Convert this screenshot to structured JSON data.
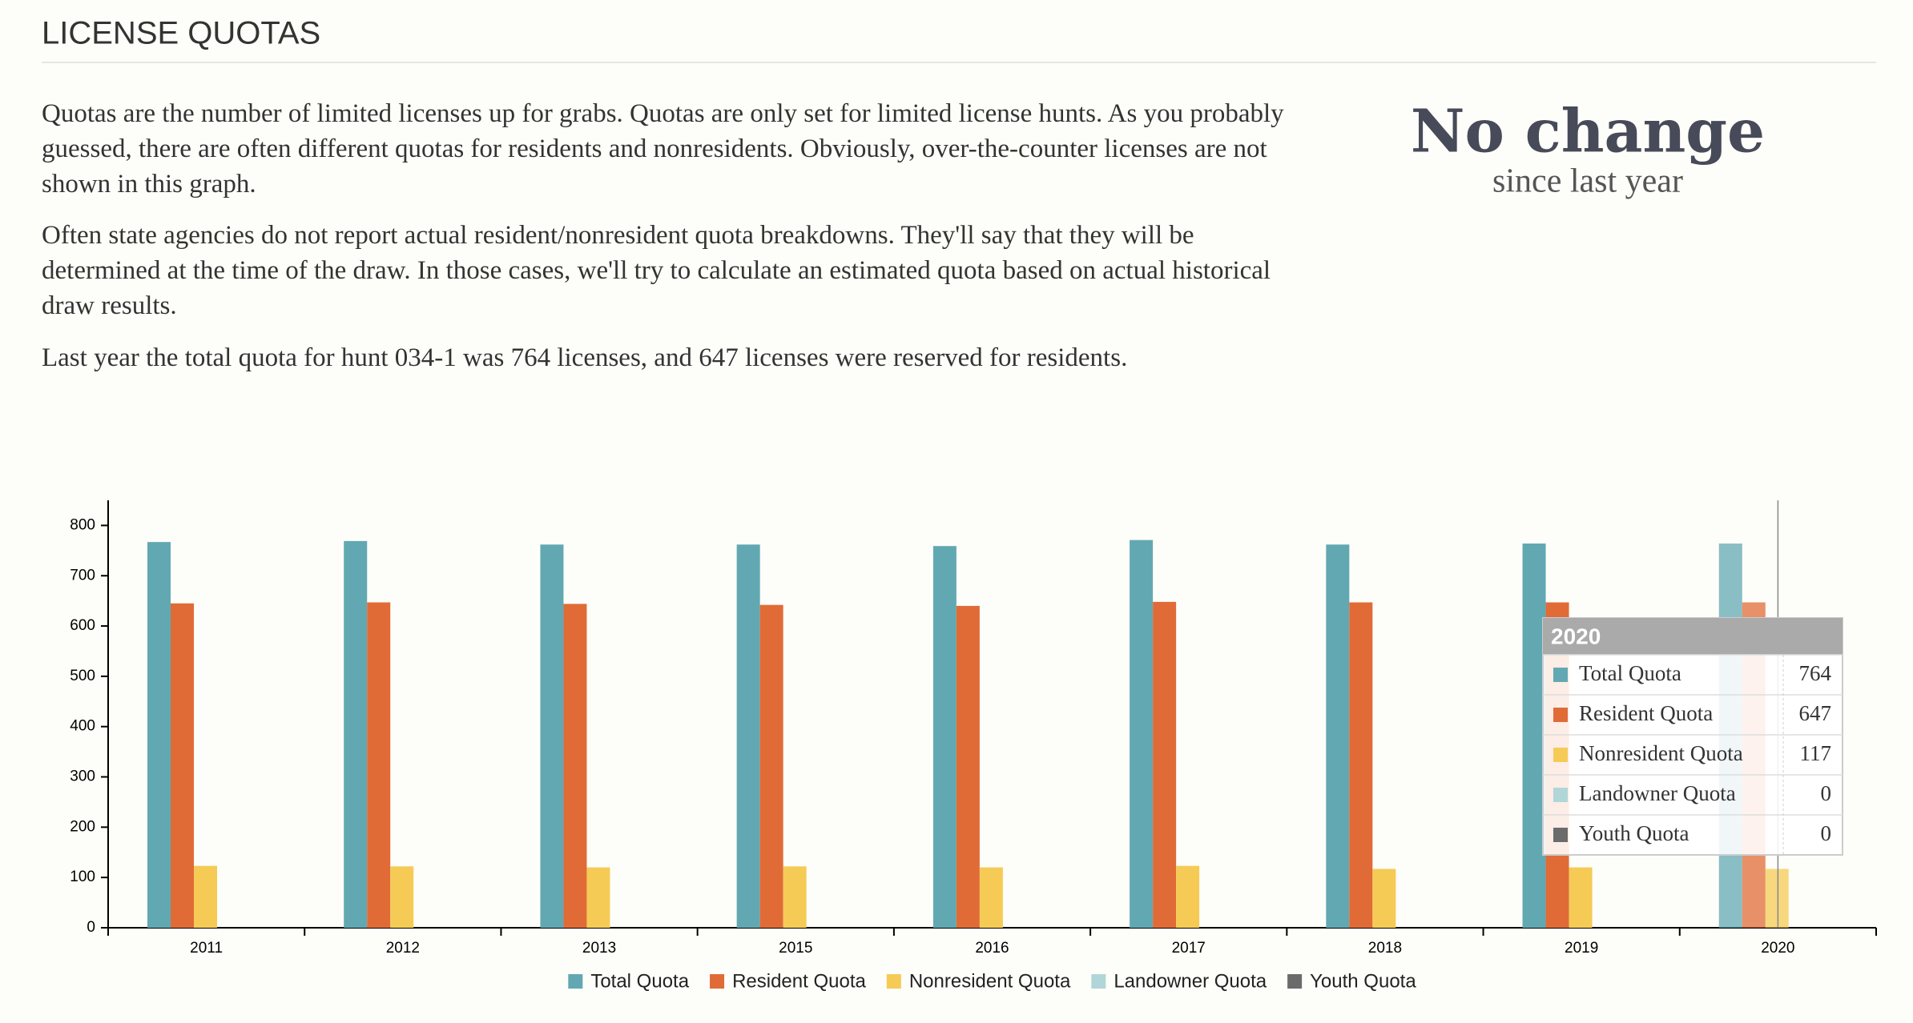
{
  "header": {
    "title": "LICENSE QUOTAS"
  },
  "paragraphs": [
    "Quotas are the number of limited licenses up for grabs. Quotas are only set for limited license hunts. As you probably guessed, there are often different quotas for residents and nonresidents. Obviously, over-the-counter licenses are not shown in this graph.",
    "Often state agencies do not report actual resident/nonresident quota breakdowns. They'll say that they will be determined at the time of the draw. In those cases, we'll try to calculate an estimated quota based on actual historical draw results.",
    "Last year the total quota for hunt 034-1 was 764 licenses, and 647 licenses were reserved for residents."
  ],
  "summary": {
    "headline": "No change",
    "subtitle": "since last year"
  },
  "chart_data": {
    "type": "bar",
    "categories": [
      "2011",
      "2012",
      "2013",
      "2015",
      "2016",
      "2017",
      "2018",
      "2019",
      "2020"
    ],
    "series": [
      {
        "name": "Total Quota",
        "color": "#62a8b2",
        "values": [
          767,
          769,
          762,
          762,
          759,
          771,
          762,
          764,
          764
        ]
      },
      {
        "name": "Resident Quota",
        "color": "#e06b37",
        "values": [
          645,
          647,
          644,
          642,
          640,
          648,
          647,
          647,
          647
        ]
      },
      {
        "name": "Nonresident Quota",
        "color": "#f5cb55",
        "values": [
          123,
          122,
          120,
          122,
          120,
          123,
          117,
          120,
          117
        ]
      },
      {
        "name": "Landowner Quota",
        "color": "#b0d6d8",
        "values": [
          0,
          0,
          0,
          0,
          0,
          0,
          0,
          0,
          0
        ]
      },
      {
        "name": "Youth Quota",
        "color": "#6b6b6b",
        "values": [
          0,
          0,
          0,
          0,
          0,
          0,
          0,
          0,
          0
        ]
      }
    ],
    "ylim": [
      0,
      850
    ],
    "yticks": [
      0,
      100,
      200,
      300,
      400,
      500,
      600,
      700,
      800
    ],
    "legend": "bottom",
    "tooltip": {
      "category": "chart_data.categories.8"
    }
  }
}
